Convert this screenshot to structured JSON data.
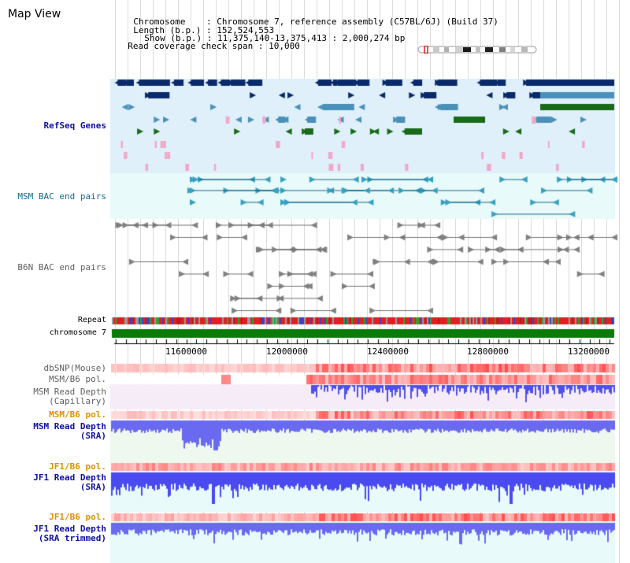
{
  "header": {
    "title": "Map View",
    "chromosome_label": "Chromosome",
    "chromosome_value": "Chromosome 7, reference assembly (C57BL/6J) (Build 37)",
    "length_label": "Length (b.p.)",
    "length_value": "152,524,553",
    "show_label": "Show (b.p.)",
    "show_value": "11,375,140-13,375,413 : 2,000,274 bp",
    "coverage_label": "Read coverage check span",
    "coverage_value": "10,000"
  },
  "tracks": {
    "refseq": "RefSeq Genes",
    "msm_bac": "MSM BAC end pairs",
    "b6n_bac": "B6N BAC end pairs",
    "repeat": "Repeat",
    "chromosome": "chromosome 7",
    "dbsnp": "dbSNP(Mouse)",
    "msm_b6_pol_1": "MSM/B6 pol.",
    "msm_depth_cap_1": "MSM Read Depth",
    "msm_depth_cap_2": "(Capillary)",
    "msm_b6_pol_2": "MSM/B6 pol.",
    "msm_depth_sra_1": "MSM Read Depth",
    "msm_depth_sra_2": "(SRA)",
    "jf1_b6_pol_1": "JF1/B6 pol.",
    "jf1_depth_sra_1": "JF1 Read Depth",
    "jf1_depth_sra_2": "(SRA)",
    "jf1_b6_pol_2": "JF1/B6 pol.",
    "jf1_depth_trim_1": "JF1 Read Depth",
    "jf1_depth_trim_2": "(SRA trimmed)"
  },
  "axis": {
    "ticks": [
      "11600000",
      "12000000",
      "12400000",
      "12800000",
      "13200000"
    ]
  },
  "colors": {
    "refseq_bg": "#dff0fa",
    "bac_bg": "#e8fafa",
    "gene_dark": "#0a2a6a",
    "gene_mid": "#4a90b8",
    "gene_green": "#1a6a1a",
    "chromosome_bar": "#0a7a0a",
    "depth_blue": "#3838e0",
    "pol_red": "#e83030"
  }
}
